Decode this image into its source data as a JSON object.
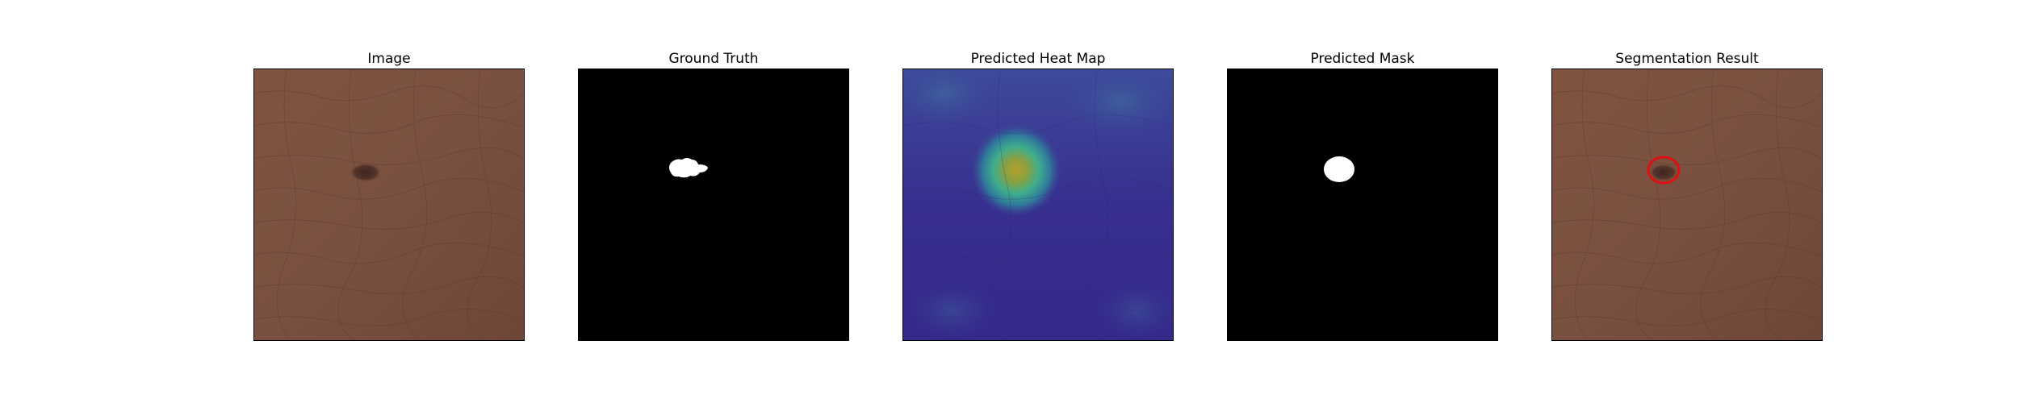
{
  "figure": {
    "panels": [
      {
        "title": "Image"
      },
      {
        "title": "Ground Truth"
      },
      {
        "title": "Predicted Heat Map"
      },
      {
        "title": "Predicted Mask"
      },
      {
        "title": "Segmentation Result"
      }
    ]
  },
  "colors": {
    "leather_base": "#7a5040",
    "leather_dark": "#5f3c2f",
    "defect": "#4a2c24",
    "mask_background": "#000000",
    "mask_foreground": "#ffffff",
    "heatmap_low": "#3a2b8c",
    "heatmap_high": "#c8b020",
    "contour": "#e01010"
  }
}
